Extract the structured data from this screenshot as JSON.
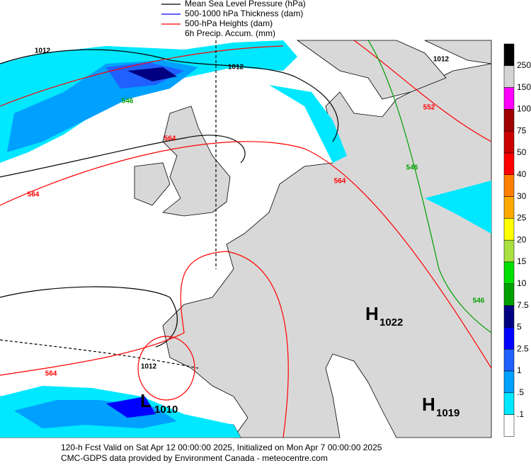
{
  "legend": [
    {
      "label": "Mean Sea Level Pressure (hPa)",
      "color": "#000000"
    },
    {
      "label": "500-1000 hPa Thickness (dam)",
      "color": "#0000ff"
    },
    {
      "label": "500-hPa Heights (dam)",
      "color": "#ff0000"
    },
    {
      "label": "6h Precip. Accum. (mm)"
    }
  ],
  "colorbar": {
    "colors": [
      "#000000",
      "#d4d4d4",
      "#ff00ff",
      "#a00000",
      "#cc0000",
      "#ff0000",
      "#ff8000",
      "#ffa800",
      "#ffff00",
      "#a8e040",
      "#00e000",
      "#00a000",
      "#000080",
      "#0000ff",
      "#2060ff",
      "#00a0ff",
      "#00e8ff",
      "#ffffff"
    ],
    "labels": [
      "250",
      "150",
      "100",
      "75",
      "50",
      "40",
      "30",
      "25",
      "20",
      "15",
      "10",
      "7.5",
      "5",
      "2.5",
      "1",
      ".5",
      ".1"
    ]
  },
  "contour_labels": [
    "1012",
    "1012",
    "1012",
    "1012",
    "564",
    "564",
    "564",
    "564",
    "552",
    "546",
    "546",
    "546"
  ],
  "pressure_centers": [
    {
      "letter": "H",
      "value": "1022"
    },
    {
      "letter": "L",
      "value": "1010"
    },
    {
      "letter": "H",
      "value": "1019"
    }
  ],
  "footer": [
    "120-h Fcst Valid on Sat Apr 12 00:00:00 2025, Initialized on Mon Apr  7 00:00:00 2025",
    "CMC-GDPS data provided by Environment Canada - meteocentre.com"
  ]
}
